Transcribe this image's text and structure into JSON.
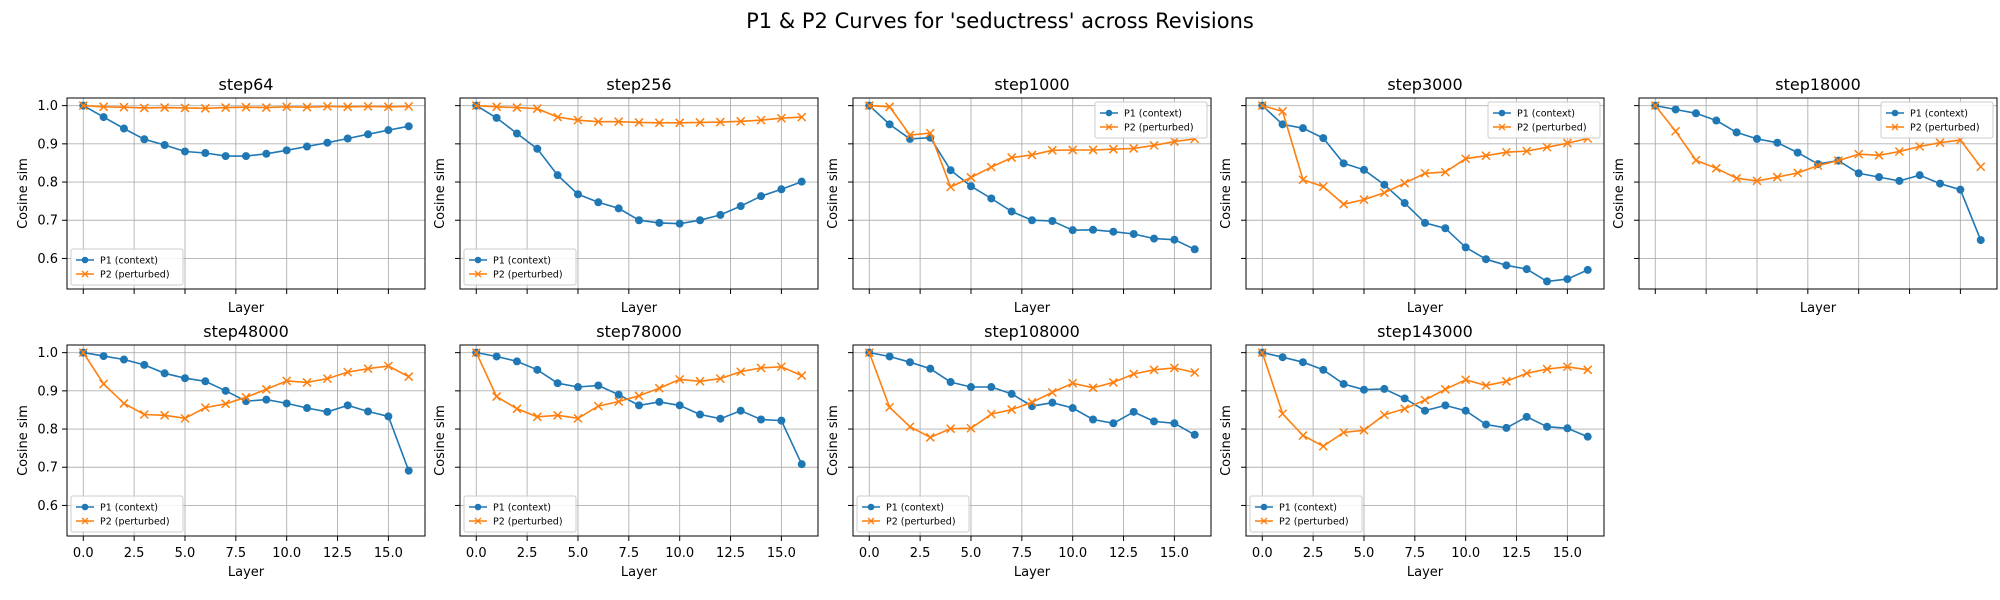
{
  "figure_title": "P1 & P2 Curves for 'seductress' across Revisions",
  "colors": {
    "p1": "#1f77b4",
    "p2": "#ff7f0e",
    "grid": "#b0b0b0"
  },
  "chart_data": [
    {
      "type": "line",
      "title": "step64",
      "xlabel": "Layer",
      "ylabel": "Cosine sim",
      "xlim": [
        -0.8,
        16.8
      ],
      "ylim": [
        0.52,
        1.02
      ],
      "legend": "bottom-left",
      "grid": true,
      "x": [
        0,
        1,
        2,
        3,
        4,
        5,
        6,
        7,
        8,
        9,
        10,
        11,
        12,
        13,
        14,
        15,
        16
      ],
      "series": [
        {
          "name": "P1 (context)",
          "marker": "circle",
          "values": [
            1.0,
            0.97,
            0.94,
            0.912,
            0.897,
            0.88,
            0.876,
            0.868,
            0.868,
            0.874,
            0.883,
            0.893,
            0.903,
            0.914,
            0.925,
            0.936,
            0.946
          ]
        },
        {
          "name": "P2 (perturbed)",
          "marker": "x",
          "values": [
            1.0,
            0.997,
            0.996,
            0.994,
            0.995,
            0.994,
            0.993,
            0.995,
            0.996,
            0.995,
            0.997,
            0.996,
            0.998,
            0.997,
            0.998,
            0.997,
            0.998
          ]
        }
      ]
    },
    {
      "type": "line",
      "title": "step256",
      "xlabel": "Layer",
      "ylabel": "Cosine sim",
      "xlim": [
        -0.8,
        16.8
      ],
      "ylim": [
        0.52,
        1.02
      ],
      "legend": "bottom-left",
      "grid": true,
      "x": [
        0,
        1,
        2,
        3,
        4,
        5,
        6,
        7,
        8,
        9,
        10,
        11,
        12,
        13,
        14,
        15,
        16
      ],
      "series": [
        {
          "name": "P1 (context)",
          "marker": "circle",
          "values": [
            1.0,
            0.968,
            0.927,
            0.887,
            0.818,
            0.768,
            0.747,
            0.731,
            0.7,
            0.693,
            0.691,
            0.7,
            0.714,
            0.737,
            0.763,
            0.781,
            0.801
          ]
        },
        {
          "name": "P2 (perturbed)",
          "marker": "x",
          "values": [
            1.0,
            0.997,
            0.995,
            0.992,
            0.97,
            0.962,
            0.958,
            0.958,
            0.956,
            0.955,
            0.955,
            0.956,
            0.957,
            0.959,
            0.962,
            0.967,
            0.97
          ]
        }
      ]
    },
    {
      "type": "line",
      "title": "step1000",
      "xlabel": "Layer",
      "ylabel": "Cosine sim",
      "xlim": [
        -0.8,
        16.8
      ],
      "ylim": [
        0.52,
        1.02
      ],
      "legend": "top-right",
      "grid": true,
      "x": [
        0,
        1,
        2,
        3,
        4,
        5,
        6,
        7,
        8,
        9,
        10,
        11,
        12,
        13,
        14,
        15,
        16
      ],
      "series": [
        {
          "name": "P1 (context)",
          "marker": "circle",
          "values": [
            1.0,
            0.951,
            0.913,
            0.916,
            0.831,
            0.789,
            0.757,
            0.723,
            0.7,
            0.698,
            0.674,
            0.675,
            0.67,
            0.664,
            0.652,
            0.649,
            0.624
          ]
        },
        {
          "name": "P2 (perturbed)",
          "marker": "x",
          "values": [
            1.0,
            0.997,
            0.923,
            0.928,
            0.787,
            0.812,
            0.839,
            0.864,
            0.871,
            0.883,
            0.884,
            0.884,
            0.886,
            0.888,
            0.896,
            0.906,
            0.913
          ]
        }
      ]
    },
    {
      "type": "line",
      "title": "step3000",
      "xlabel": "Layer",
      "ylabel": "Cosine sim",
      "xlim": [
        -0.8,
        16.8
      ],
      "ylim": [
        0.52,
        1.02
      ],
      "legend": "top-right",
      "grid": true,
      "x": [
        0,
        1,
        2,
        3,
        4,
        5,
        6,
        7,
        8,
        9,
        10,
        11,
        12,
        13,
        14,
        15,
        16
      ],
      "series": [
        {
          "name": "P1 (context)",
          "marker": "circle",
          "values": [
            1.0,
            0.951,
            0.941,
            0.915,
            0.849,
            0.832,
            0.793,
            0.745,
            0.693,
            0.679,
            0.629,
            0.598,
            0.582,
            0.572,
            0.54,
            0.546,
            0.57
          ]
        },
        {
          "name": "P2 (perturbed)",
          "marker": "x",
          "values": [
            1.0,
            0.985,
            0.806,
            0.788,
            0.742,
            0.754,
            0.772,
            0.797,
            0.823,
            0.826,
            0.861,
            0.869,
            0.878,
            0.881,
            0.891,
            0.902,
            0.914
          ]
        }
      ]
    },
    {
      "type": "line",
      "title": "step18000",
      "xlabel": "Layer",
      "ylabel": "Cosine sim",
      "xlim": [
        -0.8,
        16.8
      ],
      "ylim": [
        0.52,
        1.02
      ],
      "legend": "top-right",
      "grid": true,
      "x": [
        0,
        1,
        2,
        3,
        4,
        5,
        6,
        7,
        8,
        9,
        10,
        11,
        12,
        13,
        14,
        15,
        16
      ],
      "series": [
        {
          "name": "P1 (context)",
          "marker": "circle",
          "values": [
            1.0,
            0.99,
            0.98,
            0.961,
            0.93,
            0.913,
            0.903,
            0.877,
            0.847,
            0.856,
            0.823,
            0.813,
            0.803,
            0.818,
            0.796,
            0.78,
            0.648
          ]
        },
        {
          "name": "P2 (perturbed)",
          "marker": "x",
          "values": [
            1.0,
            0.933,
            0.857,
            0.836,
            0.81,
            0.803,
            0.813,
            0.824,
            0.843,
            0.856,
            0.873,
            0.87,
            0.88,
            0.893,
            0.903,
            0.91,
            0.84
          ]
        }
      ]
    },
    {
      "type": "line",
      "title": "step48000",
      "xlabel": "Layer",
      "ylabel": "Cosine sim",
      "xlim": [
        -0.8,
        16.8
      ],
      "ylim": [
        0.52,
        1.02
      ],
      "legend": "bottom-left",
      "grid": true,
      "x": [
        0,
        1,
        2,
        3,
        4,
        5,
        6,
        7,
        8,
        9,
        10,
        11,
        12,
        13,
        14,
        15,
        16
      ],
      "series": [
        {
          "name": "P1 (context)",
          "marker": "circle",
          "values": [
            1.0,
            0.991,
            0.982,
            0.968,
            0.946,
            0.933,
            0.925,
            0.9,
            0.873,
            0.877,
            0.867,
            0.855,
            0.845,
            0.862,
            0.846,
            0.833,
            0.691
          ]
        },
        {
          "name": "P2 (perturbed)",
          "marker": "x",
          "values": [
            1.0,
            0.918,
            0.867,
            0.838,
            0.836,
            0.828,
            0.856,
            0.866,
            0.883,
            0.904,
            0.926,
            0.922,
            0.932,
            0.949,
            0.958,
            0.965,
            0.937
          ]
        }
      ]
    },
    {
      "type": "line",
      "title": "step78000",
      "xlabel": "Layer",
      "ylabel": "Cosine sim",
      "xlim": [
        -0.8,
        16.8
      ],
      "ylim": [
        0.52,
        1.02
      ],
      "legend": "bottom-left",
      "grid": true,
      "x": [
        0,
        1,
        2,
        3,
        4,
        5,
        6,
        7,
        8,
        9,
        10,
        11,
        12,
        13,
        14,
        15,
        16
      ],
      "series": [
        {
          "name": "P1 (context)",
          "marker": "circle",
          "values": [
            1.0,
            0.99,
            0.977,
            0.955,
            0.92,
            0.91,
            0.914,
            0.89,
            0.862,
            0.871,
            0.862,
            0.838,
            0.827,
            0.848,
            0.825,
            0.822,
            0.708
          ]
        },
        {
          "name": "P2 (perturbed)",
          "marker": "x",
          "values": [
            1.0,
            0.885,
            0.853,
            0.832,
            0.836,
            0.828,
            0.86,
            0.872,
            0.887,
            0.907,
            0.93,
            0.925,
            0.932,
            0.95,
            0.96,
            0.963,
            0.94
          ]
        }
      ]
    },
    {
      "type": "line",
      "title": "step108000",
      "xlabel": "Layer",
      "ylabel": "Cosine sim",
      "xlim": [
        -0.8,
        16.8
      ],
      "ylim": [
        0.52,
        1.02
      ],
      "legend": "bottom-left",
      "grid": true,
      "x": [
        0,
        1,
        2,
        3,
        4,
        5,
        6,
        7,
        8,
        9,
        10,
        11,
        12,
        13,
        14,
        15,
        16
      ],
      "series": [
        {
          "name": "P1 (context)",
          "marker": "circle",
          "values": [
            1.0,
            0.99,
            0.975,
            0.958,
            0.923,
            0.91,
            0.91,
            0.892,
            0.86,
            0.869,
            0.855,
            0.825,
            0.815,
            0.845,
            0.82,
            0.815,
            0.785
          ]
        },
        {
          "name": "P2 (perturbed)",
          "marker": "x",
          "values": [
            1.0,
            0.857,
            0.806,
            0.778,
            0.801,
            0.802,
            0.839,
            0.851,
            0.87,
            0.896,
            0.92,
            0.908,
            0.922,
            0.944,
            0.955,
            0.96,
            0.948
          ]
        }
      ]
    },
    {
      "type": "line",
      "title": "step143000",
      "xlabel": "Layer",
      "ylabel": "Cosine sim",
      "xlim": [
        -0.8,
        16.8
      ],
      "ylim": [
        0.52,
        1.02
      ],
      "legend": "bottom-left",
      "grid": true,
      "x": [
        0,
        1,
        2,
        3,
        4,
        5,
        6,
        7,
        8,
        9,
        10,
        11,
        12,
        13,
        14,
        15,
        16
      ],
      "series": [
        {
          "name": "P1 (context)",
          "marker": "circle",
          "values": [
            1.0,
            0.988,
            0.975,
            0.955,
            0.918,
            0.903,
            0.905,
            0.88,
            0.848,
            0.862,
            0.848,
            0.812,
            0.803,
            0.832,
            0.806,
            0.802,
            0.78
          ]
        },
        {
          "name": "P2 (perturbed)",
          "marker": "x",
          "values": [
            1.0,
            0.84,
            0.783,
            0.755,
            0.791,
            0.797,
            0.837,
            0.853,
            0.876,
            0.904,
            0.929,
            0.914,
            0.925,
            0.946,
            0.957,
            0.963,
            0.955
          ]
        }
      ]
    }
  ],
  "axes": {
    "xticks": [
      0,
      2.5,
      5,
      7.5,
      10,
      12.5,
      15
    ],
    "xtick_labels": [
      "0.0",
      "2.5",
      "5.0",
      "7.5",
      "10.0",
      "12.5",
      "15.0"
    ],
    "yticks": [
      0.6,
      0.7,
      0.8,
      0.9,
      1.0
    ],
    "ytick_labels": [
      "0.6",
      "0.7",
      "0.8",
      "0.9",
      "1.0"
    ]
  }
}
